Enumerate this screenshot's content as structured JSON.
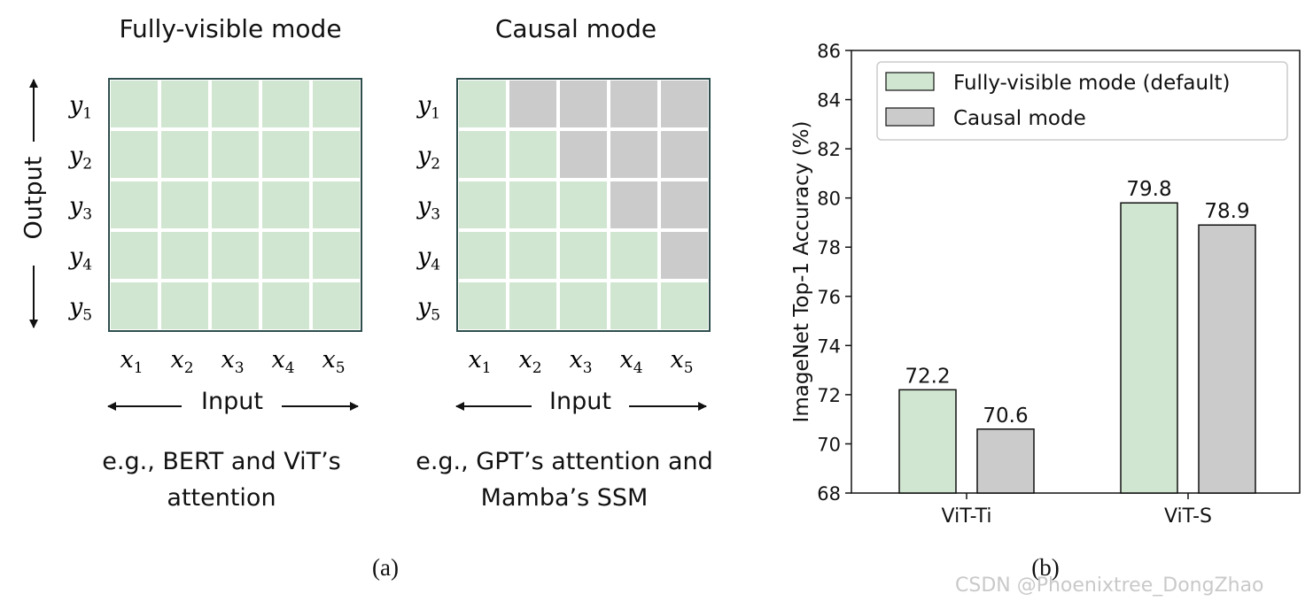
{
  "panel_a": {
    "left": {
      "title": "Fully-visible mode",
      "output_label": "Output",
      "input_label": "Input",
      "caption_line1": "e.g., BERT and ViT’s",
      "caption_line2": "attention",
      "row_labels": [
        "y1",
        "y2",
        "y3",
        "y4",
        "y5"
      ],
      "col_labels": [
        "x1",
        "x2",
        "x3",
        "x4",
        "x5"
      ],
      "mask": "full"
    },
    "right": {
      "title": "Causal mode",
      "input_label": "Input",
      "caption_line1": "e.g., GPT’s attention and",
      "caption_line2": "Mamba’s SSM",
      "row_labels": [
        "y1",
        "y2",
        "y3",
        "y4",
        "y5"
      ],
      "col_labels": [
        "x1",
        "x2",
        "x3",
        "x4",
        "x5"
      ],
      "mask": "causal"
    },
    "label": "(a)"
  },
  "panel_b": {
    "label": "(b)"
  },
  "colors": {
    "green": "#d0e6d0",
    "gray": "#cbcbcb",
    "grid_border": "#2f4f4f"
  },
  "chart_data": {
    "type": "bar",
    "categories": [
      "ViT-Ti",
      "ViT-S"
    ],
    "series": [
      {
        "name": "Fully-visible mode (default)",
        "values": [
          72.2,
          79.8
        ],
        "color": "#d0e6d0"
      },
      {
        "name": "Causal mode",
        "values": [
          70.6,
          78.9
        ],
        "color": "#cbcbcb"
      }
    ],
    "data_labels": [
      [
        "72.2",
        "79.8"
      ],
      [
        "70.6",
        "78.9"
      ]
    ],
    "ylabel": "ImageNet Top-1 Accuracy (%)",
    "xlabel": "",
    "ylim": [
      68,
      86
    ],
    "yticks": [
      "68",
      "70",
      "72",
      "74",
      "76",
      "78",
      "80",
      "82",
      "84",
      "86"
    ],
    "legend_position": "top-right",
    "grid": false
  },
  "watermark": "CSDN @Phoenixtree_DongZhao"
}
